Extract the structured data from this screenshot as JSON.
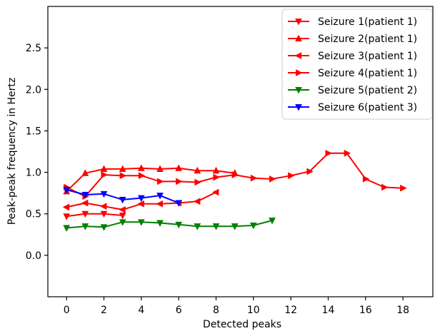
{
  "chart_data": {
    "type": "line",
    "title": "",
    "xlabel": "Detected peaks",
    "ylabel": "Peak-peak frequency in Hertz",
    "xlim": [
      -1,
      19.6
    ],
    "ylim": [
      -0.5,
      3.0
    ],
    "xticks": [
      0,
      2,
      4,
      6,
      8,
      10,
      12,
      14,
      16,
      18
    ],
    "yticks": [
      0.0,
      0.5,
      1.0,
      1.5,
      2.0,
      2.5
    ],
    "xtick_labels": [
      "0",
      "2",
      "4",
      "6",
      "8",
      "10",
      "12",
      "14",
      "16",
      "18"
    ],
    "ytick_labels": [
      "0.0",
      "0.5",
      "1.0",
      "1.5",
      "2.0",
      "2.5"
    ],
    "grid": false,
    "legend_position": "top-right",
    "series": [
      {
        "name": "Seizure 1(patient 1)",
        "color": "#ff0000",
        "marker": "triangle-down",
        "x": [
          0,
          1,
          2,
          3
        ],
        "y": [
          0.47,
          0.5,
          0.5,
          0.48
        ]
      },
      {
        "name": "Seizure 2(patient 1)",
        "color": "#ff0000",
        "marker": "triangle-up",
        "x": [
          0,
          1,
          2,
          3,
          4,
          5,
          6,
          7,
          8,
          9
        ],
        "y": [
          0.77,
          0.99,
          1.04,
          1.04,
          1.05,
          1.04,
          1.05,
          1.02,
          1.02,
          0.99
        ]
      },
      {
        "name": "Seizure 3(patient 1)",
        "color": "#ff0000",
        "marker": "triangle-left",
        "x": [
          0,
          1,
          2,
          3,
          4,
          5,
          6,
          7,
          8
        ],
        "y": [
          0.58,
          0.63,
          0.59,
          0.55,
          0.62,
          0.62,
          0.63,
          0.65,
          0.76
        ]
      },
      {
        "name": "Seizure 4(patient 1)",
        "color": "#ff0000",
        "marker": "triangle-right",
        "x": [
          0,
          1,
          2,
          3,
          4,
          5,
          6,
          7,
          8,
          9,
          10,
          11,
          12,
          13,
          14,
          15,
          16,
          17,
          18
        ],
        "y": [
          0.82,
          0.71,
          0.97,
          0.96,
          0.96,
          0.89,
          0.89,
          0.88,
          0.94,
          0.97,
          0.93,
          0.92,
          0.96,
          1.01,
          1.23,
          1.23,
          0.92,
          0.82,
          0.81
        ]
      },
      {
        "name": "Seizure 5(patient 2)",
        "color": "#008000",
        "marker": "triangle-down",
        "x": [
          0,
          1,
          2,
          3,
          4,
          5,
          6,
          7,
          8,
          9,
          10,
          11
        ],
        "y": [
          0.33,
          0.35,
          0.34,
          0.4,
          0.4,
          0.39,
          0.37,
          0.35,
          0.35,
          0.35,
          0.36,
          0.42
        ]
      },
      {
        "name": "Seizure 6(patient 3)",
        "color": "#0000ff",
        "marker": "triangle-down",
        "x": [
          0,
          1,
          2,
          3,
          4,
          5,
          6
        ],
        "y": [
          0.79,
          0.73,
          0.74,
          0.67,
          0.69,
          0.72,
          0.63
        ]
      }
    ]
  }
}
